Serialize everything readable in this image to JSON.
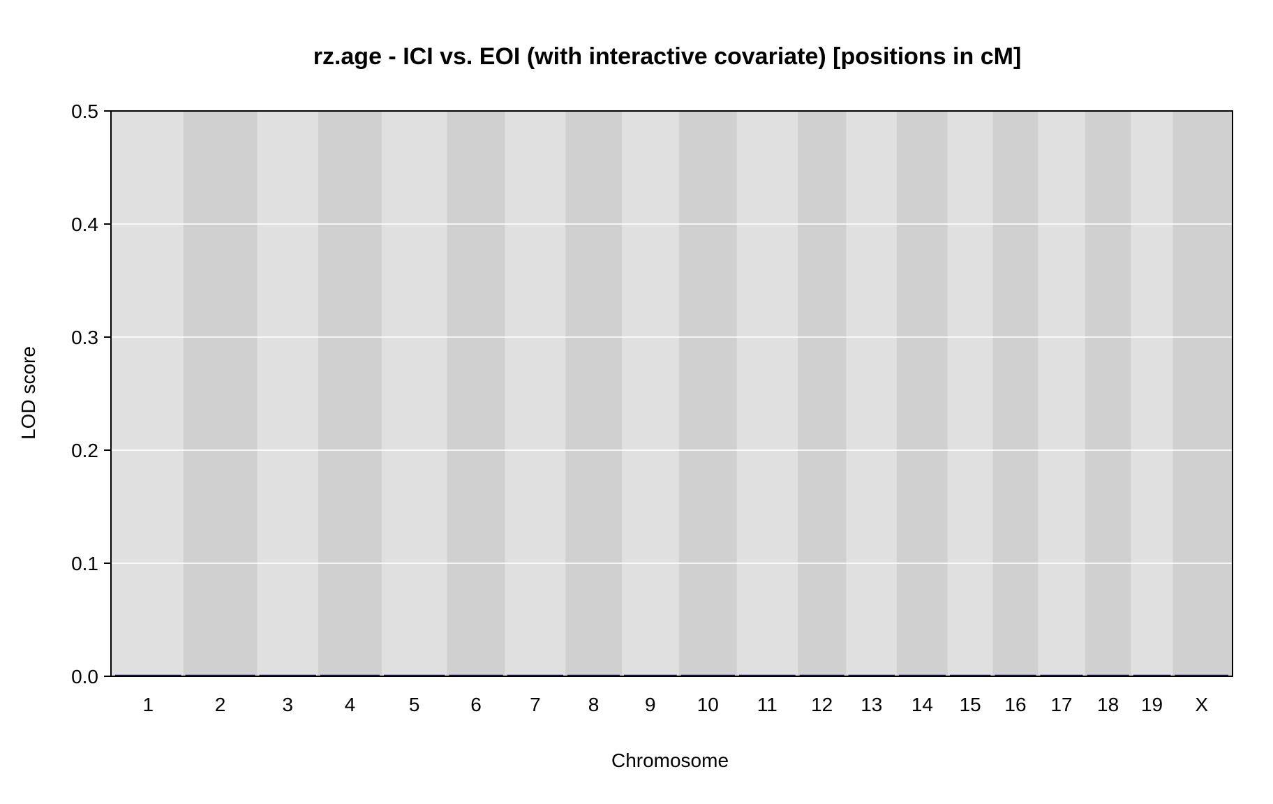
{
  "chart_data": {
    "type": "line",
    "title": "rz.age - ICI vs. EOI (with interactive covariate) [positions in cM]",
    "xlabel": "Chromosome",
    "ylabel": "LOD score",
    "ylim": [
      0,
      0.5
    ],
    "yticks": [
      "0.0",
      "0.1",
      "0.2",
      "0.3",
      "0.4",
      "0.5"
    ],
    "grid": true,
    "categories": [
      "1",
      "2",
      "3",
      "4",
      "5",
      "6",
      "7",
      "8",
      "9",
      "10",
      "11",
      "12",
      "13",
      "14",
      "15",
      "16",
      "17",
      "18",
      "19",
      "X"
    ],
    "chromosome_lengths_cM": [
      100.9,
      106.6,
      86.8,
      90.7,
      93.3,
      82.5,
      85.7,
      79.9,
      80.7,
      82.4,
      86.2,
      68.1,
      70.8,
      71.4,
      62.5,
      62.9,
      65.2,
      64.1,
      57.3,
      81.7
    ],
    "series": [
      {
        "values": [
          0,
          0,
          0,
          0,
          0,
          0,
          0,
          0,
          0,
          0,
          0,
          0,
          0,
          0,
          0,
          0,
          0,
          0,
          0,
          0
        ]
      }
    ],
    "colors": {
      "band_light": "#e0e0e0",
      "band_dark": "#d0d0d0",
      "gridline": "#ffffff",
      "line": "#1a1a60",
      "frame": "#000000"
    }
  }
}
